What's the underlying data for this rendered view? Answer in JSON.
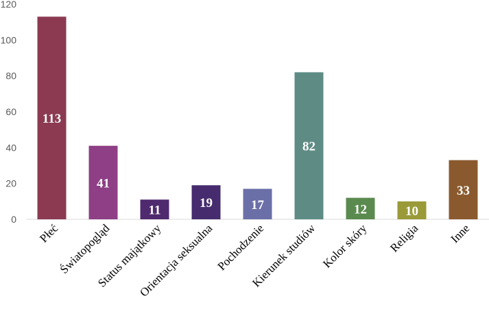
{
  "chart_data": {
    "type": "bar",
    "title": "",
    "xlabel": "",
    "ylabel": "",
    "categories": [
      "Płeć",
      "Światopogląd",
      "Status majątkowy",
      "Orientacja seksualna",
      "Pochodzenie",
      "Kierunek studiów",
      "Kolor skóry",
      "Religia",
      "Inne"
    ],
    "values": [
      113,
      41,
      11,
      19,
      17,
      82,
      12,
      10,
      33
    ],
    "data_labels": [
      "113",
      "41",
      "11",
      "19",
      "17",
      "82",
      "12",
      "10",
      "33"
    ],
    "colors": [
      "#8b3a52",
      "#8e3f86",
      "#4f2a6e",
      "#462c6e",
      "#6b6fa8",
      "#5e8c84",
      "#5b8a4f",
      "#9a9a38",
      "#8a5a2e"
    ],
    "ylim": [
      0,
      120
    ],
    "yticks": [
      0,
      20,
      40,
      60,
      80,
      100,
      120
    ],
    "grid": false,
    "legend": "none"
  }
}
